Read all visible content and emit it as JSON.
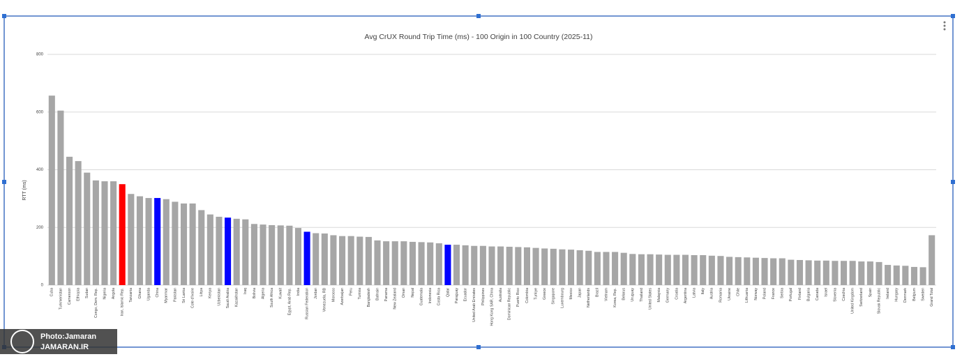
{
  "chart_data": {
    "type": "bar",
    "title": "Avg CrUX Round Trip Time (ms) - 100 Origin in 100 Country (2025-11)",
    "y_label": "RTT (ms)",
    "categories": [
      "Cuba",
      "Turkmenistan",
      "Cameroon",
      "Ethiopia",
      "Sudan",
      "Congo, Dem. Rep.",
      "Nigeria",
      "Angola",
      "Iran, Islamic Rep.",
      "Tanzania",
      "Ghana",
      "Uganda",
      "China",
      "Myanmar",
      "Pakistan",
      "Sri Lanka",
      "Cote d'Ivoire",
      "Libya",
      "Kenya",
      "Uzbekistan",
      "Saudi Arabia",
      "Kazakhstan",
      "Iraq",
      "Bolivia",
      "Algeria",
      "South Africa",
      "Kuwait",
      "Egypt, Arab Rep.",
      "India",
      "Russian Federation",
      "Jordan",
      "Venezuela, RB",
      "Morocco",
      "Azerbaijan",
      "Peru",
      "Tunisia",
      "Bangladesh",
      "Bahrain",
      "Panama",
      "New Zealand",
      "Oman",
      "Nepal",
      "Guatemala",
      "Indonesia",
      "Costa Rica",
      "Qatar",
      "Paraguay",
      "Ecuador",
      "United Arab Emirates",
      "Philippines",
      "Hong Kong SAR, China",
      "Australia",
      "Dominican Republic",
      "Puerto Rico",
      "Colombia",
      "Turkiye",
      "Greece",
      "Singapore",
      "Luxembourg",
      "Mexico",
      "Japan",
      "Netherlands",
      "Brazil",
      "Vietnam",
      "Korea, Rep.",
      "Belarus",
      "Uruguay",
      "Thailand",
      "United States",
      "Malaysia",
      "Germany",
      "Croatia",
      "Argentina",
      "Latvia",
      "Italy",
      "Austria",
      "Romania",
      "Ukraine",
      "Chile",
      "Lithuania",
      "Norway",
      "Poland",
      "France",
      "Serbia",
      "Portugal",
      "Finland",
      "Bulgaria",
      "Canada",
      "Israel",
      "Slovenia",
      "Czechia",
      "United Kingdom",
      "Switzerland",
      "Spain",
      "Slovak Republic",
      "Ireland",
      "Hungary",
      "Denmark",
      "Belgium",
      "Sweden",
      "Grand Total"
    ],
    "values": [
      657,
      605,
      445,
      430,
      390,
      363,
      360,
      360,
      350,
      316,
      308,
      302,
      302,
      298,
      289,
      283,
      283,
      260,
      245,
      237,
      234,
      230,
      228,
      212,
      210,
      208,
      207,
      206,
      198,
      185,
      180,
      179,
      173,
      170,
      170,
      168,
      167,
      155,
      152,
      152,
      152,
      150,
      149,
      148,
      145,
      140,
      140,
      138,
      136,
      136,
      134,
      134,
      133,
      132,
      131,
      129,
      127,
      126,
      124,
      123,
      121,
      119,
      115,
      115,
      115,
      112,
      108,
      107,
      107,
      106,
      105,
      105,
      105,
      104,
      104,
      102,
      101,
      98,
      97,
      96,
      95,
      94,
      93,
      93,
      88,
      87,
      86,
      85,
      85,
      84,
      84,
      84,
      82,
      82,
      80,
      70,
      68,
      67,
      63,
      62,
      173
    ],
    "colors": [
      "#a6a6a6",
      "#a6a6a6",
      "#a6a6a6",
      "#a6a6a6",
      "#a6a6a6",
      "#a6a6a6",
      "#a6a6a6",
      "#a6a6a6",
      "#ff0000",
      "#a6a6a6",
      "#a6a6a6",
      "#a6a6a6",
      "#0000ff",
      "#a6a6a6",
      "#a6a6a6",
      "#a6a6a6",
      "#a6a6a6",
      "#a6a6a6",
      "#a6a6a6",
      "#a6a6a6",
      "#0000ff",
      "#a6a6a6",
      "#a6a6a6",
      "#a6a6a6",
      "#a6a6a6",
      "#a6a6a6",
      "#a6a6a6",
      "#a6a6a6",
      "#a6a6a6",
      "#0000ff",
      "#a6a6a6",
      "#a6a6a6",
      "#a6a6a6",
      "#a6a6a6",
      "#a6a6a6",
      "#a6a6a6",
      "#a6a6a6",
      "#a6a6a6",
      "#a6a6a6",
      "#a6a6a6",
      "#a6a6a6",
      "#a6a6a6",
      "#a6a6a6",
      "#a6a6a6",
      "#a6a6a6",
      "#0000ff",
      "#a6a6a6",
      "#a6a6a6",
      "#a6a6a6",
      "#a6a6a6",
      "#a6a6a6",
      "#a6a6a6",
      "#a6a6a6",
      "#a6a6a6",
      "#a6a6a6",
      "#a6a6a6",
      "#a6a6a6",
      "#a6a6a6",
      "#a6a6a6",
      "#a6a6a6",
      "#a6a6a6",
      "#a6a6a6",
      "#a6a6a6",
      "#a6a6a6",
      "#a6a6a6",
      "#a6a6a6",
      "#a6a6a6",
      "#a6a6a6",
      "#a6a6a6",
      "#a6a6a6",
      "#a6a6a6",
      "#a6a6a6",
      "#a6a6a6",
      "#a6a6a6",
      "#a6a6a6",
      "#a6a6a6",
      "#a6a6a6",
      "#a6a6a6",
      "#a6a6a6",
      "#a6a6a6",
      "#a6a6a6",
      "#a6a6a6",
      "#a6a6a6",
      "#a6a6a6",
      "#a6a6a6",
      "#a6a6a6",
      "#a6a6a6",
      "#a6a6a6",
      "#a6a6a6",
      "#a6a6a6",
      "#a6a6a6",
      "#a6a6a6",
      "#a6a6a6",
      "#a6a6a6",
      "#a6a6a6",
      "#a6a6a6",
      "#a6a6a6",
      "#a6a6a6",
      "#a6a6a6",
      "#a6a6a6",
      "#a6a6a6"
    ],
    "ylim": [
      0,
      800
    ],
    "yticks": [
      0,
      200,
      400,
      600,
      800
    ],
    "grid": true
  },
  "watermark": [
    "Photo:Jamaran",
    "JAMARAN.IR"
  ]
}
